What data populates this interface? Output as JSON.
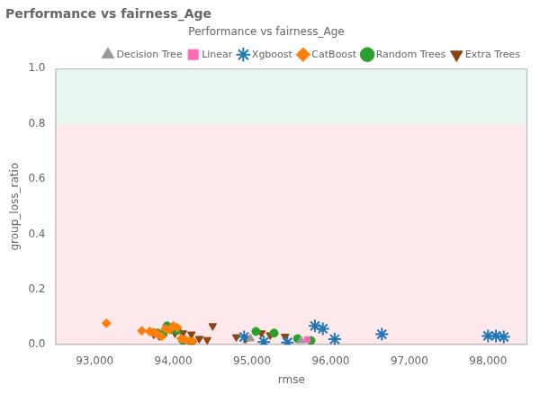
{
  "chart_data": {
    "type": "scatter",
    "title": "Performance vs fairness_Age",
    "subtitle": "Performance vs fairness_Age",
    "xlabel": "rmse",
    "ylabel": "group_loss_ratio",
    "xlim": [
      92500,
      98500
    ],
    "ylim": [
      0.0,
      1.0
    ],
    "xticks": [
      {
        "value": 93000,
        "label": "93,000"
      },
      {
        "value": 94000,
        "label": "94,000"
      },
      {
        "value": 95000,
        "label": "95,000"
      },
      {
        "value": 96000,
        "label": "96,000"
      },
      {
        "value": 97000,
        "label": "97,000"
      },
      {
        "value": 98000,
        "label": "98,000"
      }
    ],
    "yticks": [
      {
        "value": 0.0,
        "label": "0.0"
      },
      0.2,
      0.4,
      0.6,
      0.8,
      {
        "value": 1.0,
        "label": "1.0"
      }
    ],
    "grid": false,
    "legend": "upper right",
    "bands": [
      {
        "ymin": 0.0,
        "ymax": 0.8,
        "color": "#fde8ec"
      },
      {
        "ymin": 0.8,
        "ymax": 1.0,
        "color": "#e8f5ee"
      }
    ],
    "series": [
      {
        "name": "Decision Tree",
        "color": "#999999",
        "marker": "triangle",
        "x": [
          94980,
          95620
        ],
        "values": [
          0.022,
          0.015
        ]
      },
      {
        "name": "Linear",
        "color": "#ff69b4",
        "marker": "square",
        "x": [
          95700
        ],
        "values": [
          0.018
        ]
      },
      {
        "name": "Xgboost",
        "color": "#1f77b4",
        "marker": "star",
        "x": [
          94900,
          95150,
          95450,
          95800,
          95900,
          96050,
          96650,
          98000,
          98100,
          98200
        ],
        "values": [
          0.028,
          0.01,
          0.008,
          0.068,
          0.058,
          0.02,
          0.038,
          0.032,
          0.032,
          0.028
        ]
      },
      {
        "name": "CatBoost",
        "color": "#ff7f0e",
        "marker": "diamond",
        "x": [
          93150,
          93600,
          93700,
          93750,
          93800,
          93850,
          93900,
          93950,
          94000,
          94050,
          94100,
          94150,
          94200,
          94250
        ],
        "values": [
          0.078,
          0.05,
          0.048,
          0.045,
          0.038,
          0.03,
          0.058,
          0.055,
          0.068,
          0.062,
          0.022,
          0.018,
          0.014,
          0.012
        ]
      },
      {
        "name": "Random Trees",
        "color": "#2ca02c",
        "marker": "circle",
        "x": [
          93800,
          93870,
          93920,
          93970,
          94050,
          94120,
          94220,
          95050,
          95280,
          95580,
          95750
        ],
        "values": [
          0.042,
          0.038,
          0.068,
          0.055,
          0.052,
          0.016,
          0.012,
          0.048,
          0.042,
          0.022,
          0.015
        ]
      },
      {
        "name": "Extra Trees",
        "color": "#8B4513",
        "marker": "triangle_down",
        "x": [
          93750,
          93820,
          94020,
          94120,
          94230,
          94330,
          94430,
          94500,
          94800,
          94920,
          95120,
          95230,
          95420
        ],
        "values": [
          0.038,
          0.032,
          0.042,
          0.042,
          0.038,
          0.022,
          0.018,
          0.068,
          0.028,
          0.022,
          0.042,
          0.035,
          0.03
        ]
      }
    ]
  }
}
